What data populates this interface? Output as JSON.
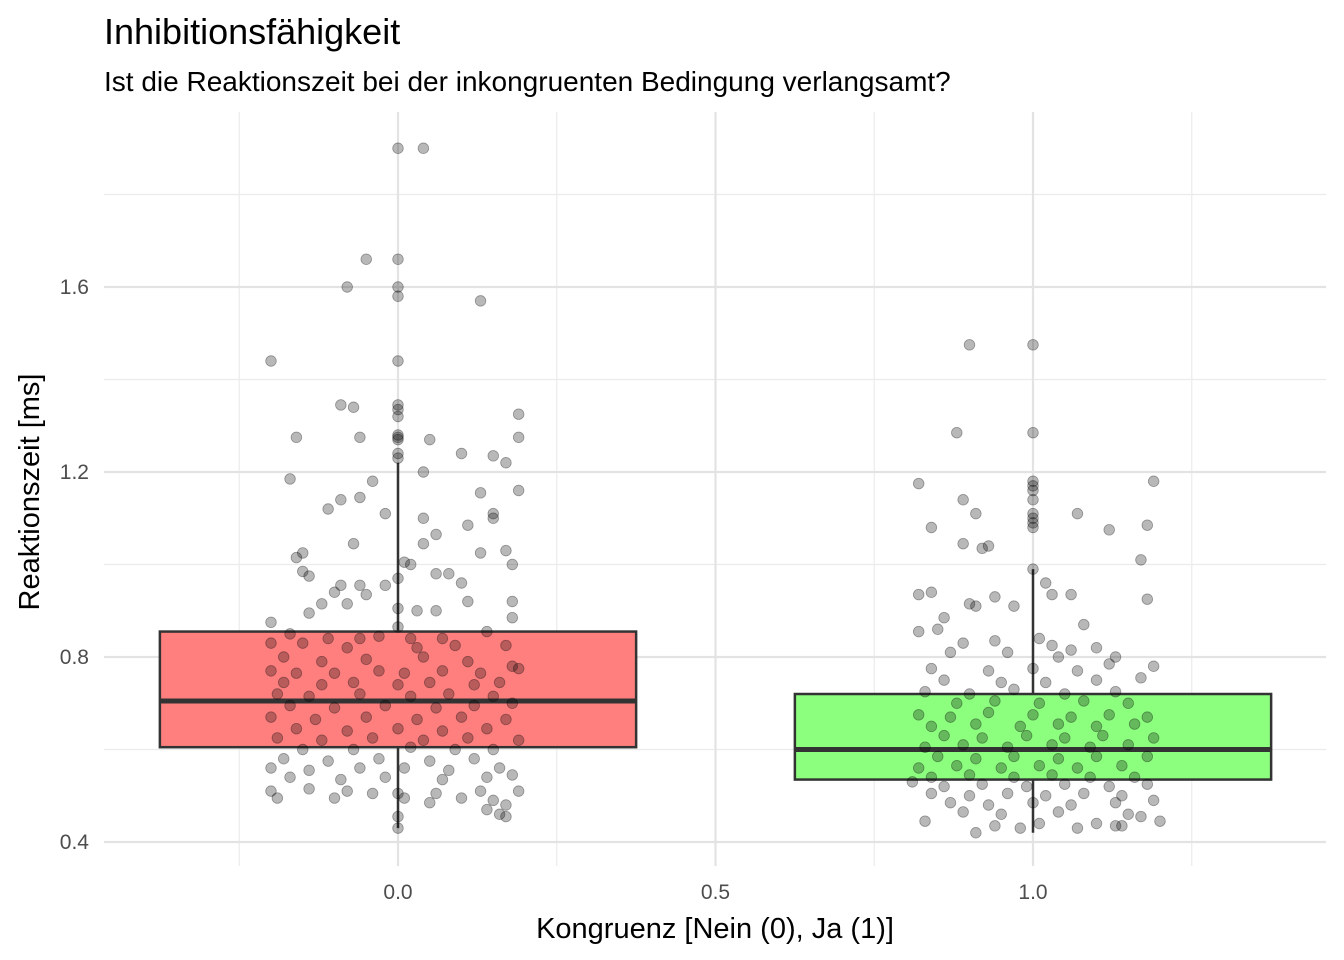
{
  "chart_data": {
    "type": "box",
    "title": "Inhibitionsfähigkeit",
    "subtitle": "Ist die Reaktionszeit bei der inkongruenten Bedingung verlangsamt?",
    "xlabel": "Kongruenz [Nein (0), Ja (1)]",
    "ylabel": "Reaktionszeit [ms]",
    "xlim": [
      -0.5,
      1.5
    ],
    "ylim": [
      0.38,
      1.9
    ],
    "x_ticks": [
      {
        "value": 0.0,
        "label": "0.0"
      },
      {
        "value": 0.5,
        "label": "0.5"
      },
      {
        "value": 1.0,
        "label": "1.0"
      }
    ],
    "y_ticks": [
      {
        "value": 0.4,
        "label": "0.4"
      },
      {
        "value": 0.8,
        "label": "0.8"
      },
      {
        "value": 1.2,
        "label": "1.2"
      },
      {
        "value": 1.6,
        "label": "1.6"
      }
    ],
    "grid": true,
    "legend": "none",
    "boxes": [
      {
        "x": 0,
        "color": "#ff7f7f",
        "q1": 0.605,
        "median": 0.705,
        "q3": 0.855,
        "whisker_low": 0.43,
        "whisker_high": 1.22
      },
      {
        "x": 1,
        "color": "#8cff7f",
        "q1": 0.535,
        "median": 0.6,
        "q3": 0.72,
        "whisker_low": 0.42,
        "whisker_high": 0.99
      }
    ],
    "points": [
      [
        0.0,
        1.9
      ],
      [
        0.04,
        1.9
      ],
      [
        0.0,
        1.66
      ],
      [
        -0.05,
        1.66
      ],
      [
        0.0,
        1.6
      ],
      [
        -0.08,
        1.6
      ],
      [
        0.0,
        1.58
      ],
      [
        0.13,
        1.57
      ],
      [
        0.0,
        1.44
      ],
      [
        -0.2,
        1.44
      ],
      [
        0.0,
        1.345
      ],
      [
        0.0,
        1.335
      ],
      [
        -0.09,
        1.345
      ],
      [
        -0.07,
        1.34
      ],
      [
        0.0,
        1.32
      ],
      [
        0.19,
        1.325
      ],
      [
        0.0,
        1.28
      ],
      [
        0.0,
        1.275
      ],
      [
        0.0,
        1.27
      ],
      [
        -0.16,
        1.275
      ],
      [
        -0.06,
        1.275
      ],
      [
        0.05,
        1.27
      ],
      [
        0.19,
        1.275
      ],
      [
        0.0,
        1.24
      ],
      [
        0.0,
        1.23
      ],
      [
        0.1,
        1.24
      ],
      [
        0.15,
        1.235
      ],
      [
        0.17,
        1.22
      ],
      [
        0.04,
        1.2
      ],
      [
        -0.17,
        1.185
      ],
      [
        -0.04,
        1.18
      ],
      [
        -0.06,
        1.145
      ],
      [
        -0.09,
        1.14
      ],
      [
        -0.11,
        1.12
      ],
      [
        0.13,
        1.155
      ],
      [
        0.19,
        1.16
      ],
      [
        -0.02,
        1.11
      ],
      [
        0.04,
        1.1
      ],
      [
        0.15,
        1.11
      ],
      [
        0.15,
        1.1
      ],
      [
        0.11,
        1.085
      ],
      [
        0.06,
        1.065
      ],
      [
        -0.07,
        1.045
      ],
      [
        0.04,
        1.045
      ],
      [
        -0.15,
        1.025
      ],
      [
        -0.16,
        1.015
      ],
      [
        0.01,
        1.005
      ],
      [
        0.02,
        1.0
      ],
      [
        0.13,
        1.025
      ],
      [
        0.17,
        1.03
      ],
      [
        0.18,
        1.0
      ],
      [
        -0.15,
        0.985
      ],
      [
        -0.14,
        0.975
      ],
      [
        0.0,
        0.97
      ],
      [
        0.06,
        0.98
      ],
      [
        0.08,
        0.98
      ],
      [
        -0.06,
        0.955
      ],
      [
        -0.09,
        0.955
      ],
      [
        -0.1,
        0.94
      ],
      [
        -0.05,
        0.935
      ],
      [
        -0.02,
        0.955
      ],
      [
        0.1,
        0.96
      ],
      [
        -0.08,
        0.915
      ],
      [
        -0.12,
        0.915
      ],
      [
        0.0,
        0.905
      ],
      [
        0.03,
        0.9
      ],
      [
        0.06,
        0.9
      ],
      [
        0.11,
        0.92
      ],
      [
        0.18,
        0.92
      ],
      [
        -0.14,
        0.895
      ],
      [
        -0.2,
        0.875
      ],
      [
        0.0,
        0.865
      ],
      [
        0.18,
        0.885
      ],
      [
        -0.17,
        0.85
      ],
      [
        -0.11,
        0.84
      ],
      [
        -0.06,
        0.84
      ],
      [
        -0.03,
        0.845
      ],
      [
        0.02,
        0.84
      ],
      [
        0.07,
        0.84
      ],
      [
        0.14,
        0.855
      ],
      [
        -0.2,
        0.83
      ],
      [
        -0.15,
        0.83
      ],
      [
        -0.08,
        0.82
      ],
      [
        0.03,
        0.82
      ],
      [
        0.09,
        0.825
      ],
      [
        0.17,
        0.825
      ],
      [
        -0.18,
        0.8
      ],
      [
        -0.12,
        0.79
      ],
      [
        -0.05,
        0.795
      ],
      [
        0.04,
        0.8
      ],
      [
        0.11,
        0.79
      ],
      [
        0.18,
        0.78
      ],
      [
        -0.2,
        0.77
      ],
      [
        -0.16,
        0.765
      ],
      [
        -0.1,
        0.765
      ],
      [
        -0.03,
        0.77
      ],
      [
        0.01,
        0.765
      ],
      [
        0.07,
        0.77
      ],
      [
        0.13,
        0.765
      ],
      [
        0.19,
        0.775
      ],
      [
        -0.18,
        0.745
      ],
      [
        -0.12,
        0.74
      ],
      [
        -0.07,
        0.745
      ],
      [
        0.0,
        0.74
      ],
      [
        0.05,
        0.745
      ],
      [
        0.12,
        0.74
      ],
      [
        0.16,
        0.745
      ],
      [
        -0.19,
        0.72
      ],
      [
        -0.14,
        0.715
      ],
      [
        -0.06,
        0.72
      ],
      [
        0.02,
        0.715
      ],
      [
        0.08,
        0.72
      ],
      [
        0.15,
        0.715
      ],
      [
        -0.17,
        0.695
      ],
      [
        -0.1,
        0.69
      ],
      [
        -0.02,
        0.695
      ],
      [
        0.06,
        0.69
      ],
      [
        0.12,
        0.695
      ],
      [
        0.18,
        0.7
      ],
      [
        -0.2,
        0.67
      ],
      [
        -0.13,
        0.665
      ],
      [
        -0.05,
        0.67
      ],
      [
        0.03,
        0.665
      ],
      [
        0.1,
        0.67
      ],
      [
        0.17,
        0.665
      ],
      [
        -0.16,
        0.645
      ],
      [
        -0.08,
        0.64
      ],
      [
        0.0,
        0.645
      ],
      [
        0.07,
        0.64
      ],
      [
        0.14,
        0.645
      ],
      [
        -0.19,
        0.625
      ],
      [
        -0.12,
        0.62
      ],
      [
        -0.04,
        0.625
      ],
      [
        0.04,
        0.62
      ],
      [
        0.11,
        0.625
      ],
      [
        0.19,
        0.62
      ],
      [
        -0.15,
        0.6
      ],
      [
        -0.07,
        0.6
      ],
      [
        0.02,
        0.605
      ],
      [
        0.09,
        0.6
      ],
      [
        0.15,
        0.6
      ],
      [
        -0.18,
        0.58
      ],
      [
        -0.11,
        0.575
      ],
      [
        -0.03,
        0.58
      ],
      [
        0.05,
        0.575
      ],
      [
        0.12,
        0.58
      ],
      [
        -0.2,
        0.56
      ],
      [
        -0.14,
        0.555
      ],
      [
        -0.06,
        0.56
      ],
      [
        0.01,
        0.56
      ],
      [
        0.08,
        0.555
      ],
      [
        0.16,
        0.56
      ],
      [
        -0.17,
        0.54
      ],
      [
        -0.09,
        0.535
      ],
      [
        -0.02,
        0.54
      ],
      [
        0.07,
        0.535
      ],
      [
        0.14,
        0.54
      ],
      [
        0.18,
        0.545
      ],
      [
        -0.2,
        0.51
      ],
      [
        -0.14,
        0.515
      ],
      [
        -0.08,
        0.51
      ],
      [
        -0.04,
        0.505
      ],
      [
        0.0,
        0.505
      ],
      [
        0.06,
        0.505
      ],
      [
        0.13,
        0.51
      ],
      [
        0.19,
        0.51
      ],
      [
        -0.19,
        0.495
      ],
      [
        -0.1,
        0.495
      ],
      [
        0.01,
        0.495
      ],
      [
        0.1,
        0.495
      ],
      [
        0.15,
        0.49
      ],
      [
        0.05,
        0.485
      ],
      [
        0.17,
        0.48
      ],
      [
        0.14,
        0.47
      ],
      [
        0.16,
        0.46
      ],
      [
        0.17,
        0.455
      ],
      [
        0.0,
        0.455
      ],
      [
        0.0,
        0.43
      ],
      [
        1.0,
        1.475
      ],
      [
        0.9,
        1.475
      ],
      [
        1.0,
        1.285
      ],
      [
        0.88,
        1.285
      ],
      [
        1.0,
        1.18
      ],
      [
        1.0,
        1.17
      ],
      [
        1.0,
        1.16
      ],
      [
        0.82,
        1.175
      ],
      [
        1.19,
        1.18
      ],
      [
        1.0,
        1.14
      ],
      [
        0.89,
        1.14
      ],
      [
        1.0,
        1.11
      ],
      [
        1.0,
        1.1
      ],
      [
        0.91,
        1.11
      ],
      [
        1.07,
        1.11
      ],
      [
        1.0,
        1.09
      ],
      [
        1.0,
        1.08
      ],
      [
        0.84,
        1.08
      ],
      [
        1.12,
        1.075
      ],
      [
        1.18,
        1.085
      ],
      [
        0.89,
        1.045
      ],
      [
        0.92,
        1.035
      ],
      [
        0.93,
        1.04
      ],
      [
        1.17,
        1.01
      ],
      [
        1.0,
        0.99
      ],
      [
        1.02,
        0.96
      ],
      [
        0.82,
        0.935
      ],
      [
        0.84,
        0.94
      ],
      [
        0.94,
        0.93
      ],
      [
        1.03,
        0.935
      ],
      [
        1.06,
        0.935
      ],
      [
        0.9,
        0.915
      ],
      [
        0.91,
        0.91
      ],
      [
        0.97,
        0.91
      ],
      [
        1.18,
        0.925
      ],
      [
        0.86,
        0.885
      ],
      [
        1.01,
        0.84
      ],
      [
        1.08,
        0.87
      ],
      [
        0.82,
        0.855
      ],
      [
        0.85,
        0.86
      ],
      [
        0.89,
        0.83
      ],
      [
        0.94,
        0.835
      ],
      [
        1.03,
        0.825
      ],
      [
        1.06,
        0.815
      ],
      [
        1.1,
        0.82
      ],
      [
        0.87,
        0.81
      ],
      [
        0.96,
        0.81
      ],
      [
        1.04,
        0.8
      ],
      [
        1.13,
        0.8
      ],
      [
        0.84,
        0.775
      ],
      [
        0.93,
        0.77
      ],
      [
        1.0,
        0.775
      ],
      [
        1.07,
        0.77
      ],
      [
        1.12,
        0.785
      ],
      [
        1.19,
        0.78
      ],
      [
        0.86,
        0.75
      ],
      [
        0.95,
        0.745
      ],
      [
        1.02,
        0.745
      ],
      [
        1.1,
        0.75
      ],
      [
        1.17,
        0.755
      ],
      [
        0.83,
        0.725
      ],
      [
        0.9,
        0.72
      ],
      [
        0.97,
        0.73
      ],
      [
        1.05,
        0.72
      ],
      [
        1.13,
        0.725
      ],
      [
        0.88,
        0.7
      ],
      [
        0.94,
        0.705
      ],
      [
        1.01,
        0.7
      ],
      [
        1.08,
        0.705
      ],
      [
        1.15,
        0.7
      ],
      [
        0.82,
        0.675
      ],
      [
        0.87,
        0.67
      ],
      [
        0.93,
        0.68
      ],
      [
        1.0,
        0.675
      ],
      [
        1.06,
        0.67
      ],
      [
        1.12,
        0.675
      ],
      [
        1.18,
        0.67
      ],
      [
        0.84,
        0.65
      ],
      [
        0.91,
        0.655
      ],
      [
        0.98,
        0.65
      ],
      [
        1.04,
        0.655
      ],
      [
        1.1,
        0.65
      ],
      [
        1.16,
        0.655
      ],
      [
        0.86,
        0.63
      ],
      [
        0.92,
        0.625
      ],
      [
        0.99,
        0.63
      ],
      [
        1.05,
        0.625
      ],
      [
        1.11,
        0.63
      ],
      [
        1.19,
        0.625
      ],
      [
        0.83,
        0.605
      ],
      [
        0.89,
        0.61
      ],
      [
        0.96,
        0.605
      ],
      [
        1.03,
        0.61
      ],
      [
        1.09,
        0.605
      ],
      [
        1.15,
        0.61
      ],
      [
        0.85,
        0.585
      ],
      [
        0.91,
        0.58
      ],
      [
        0.97,
        0.585
      ],
      [
        1.04,
        0.58
      ],
      [
        1.1,
        0.585
      ],
      [
        1.18,
        0.585
      ],
      [
        0.82,
        0.56
      ],
      [
        0.88,
        0.565
      ],
      [
        0.95,
        0.56
      ],
      [
        1.01,
        0.565
      ],
      [
        1.07,
        0.56
      ],
      [
        1.14,
        0.565
      ],
      [
        0.84,
        0.54
      ],
      [
        0.9,
        0.545
      ],
      [
        0.97,
        0.54
      ],
      [
        1.03,
        0.545
      ],
      [
        1.09,
        0.54
      ],
      [
        1.16,
        0.54
      ],
      [
        0.81,
        0.53
      ],
      [
        0.86,
        0.52
      ],
      [
        0.92,
        0.525
      ],
      [
        0.99,
        0.52
      ],
      [
        1.05,
        0.525
      ],
      [
        1.12,
        0.52
      ],
      [
        1.18,
        0.525
      ],
      [
        0.84,
        0.505
      ],
      [
        0.9,
        0.5
      ],
      [
        0.96,
        0.505
      ],
      [
        1.02,
        0.5
      ],
      [
        1.08,
        0.505
      ],
      [
        1.14,
        0.5
      ],
      [
        0.87,
        0.485
      ],
      [
        0.93,
        0.48
      ],
      [
        1.0,
        0.485
      ],
      [
        1.06,
        0.48
      ],
      [
        1.13,
        0.485
      ],
      [
        1.19,
        0.49
      ],
      [
        0.89,
        0.465
      ],
      [
        0.95,
        0.46
      ],
      [
        1.04,
        0.465
      ],
      [
        1.15,
        0.46
      ],
      [
        1.17,
        0.455
      ],
      [
        0.83,
        0.445
      ],
      [
        0.94,
        0.435
      ],
      [
        1.01,
        0.44
      ],
      [
        1.1,
        0.44
      ],
      [
        1.13,
        0.435
      ],
      [
        1.14,
        0.435
      ],
      [
        1.2,
        0.445
      ],
      [
        0.91,
        0.42
      ],
      [
        0.98,
        0.43
      ],
      [
        1.07,
        0.43
      ]
    ]
  }
}
